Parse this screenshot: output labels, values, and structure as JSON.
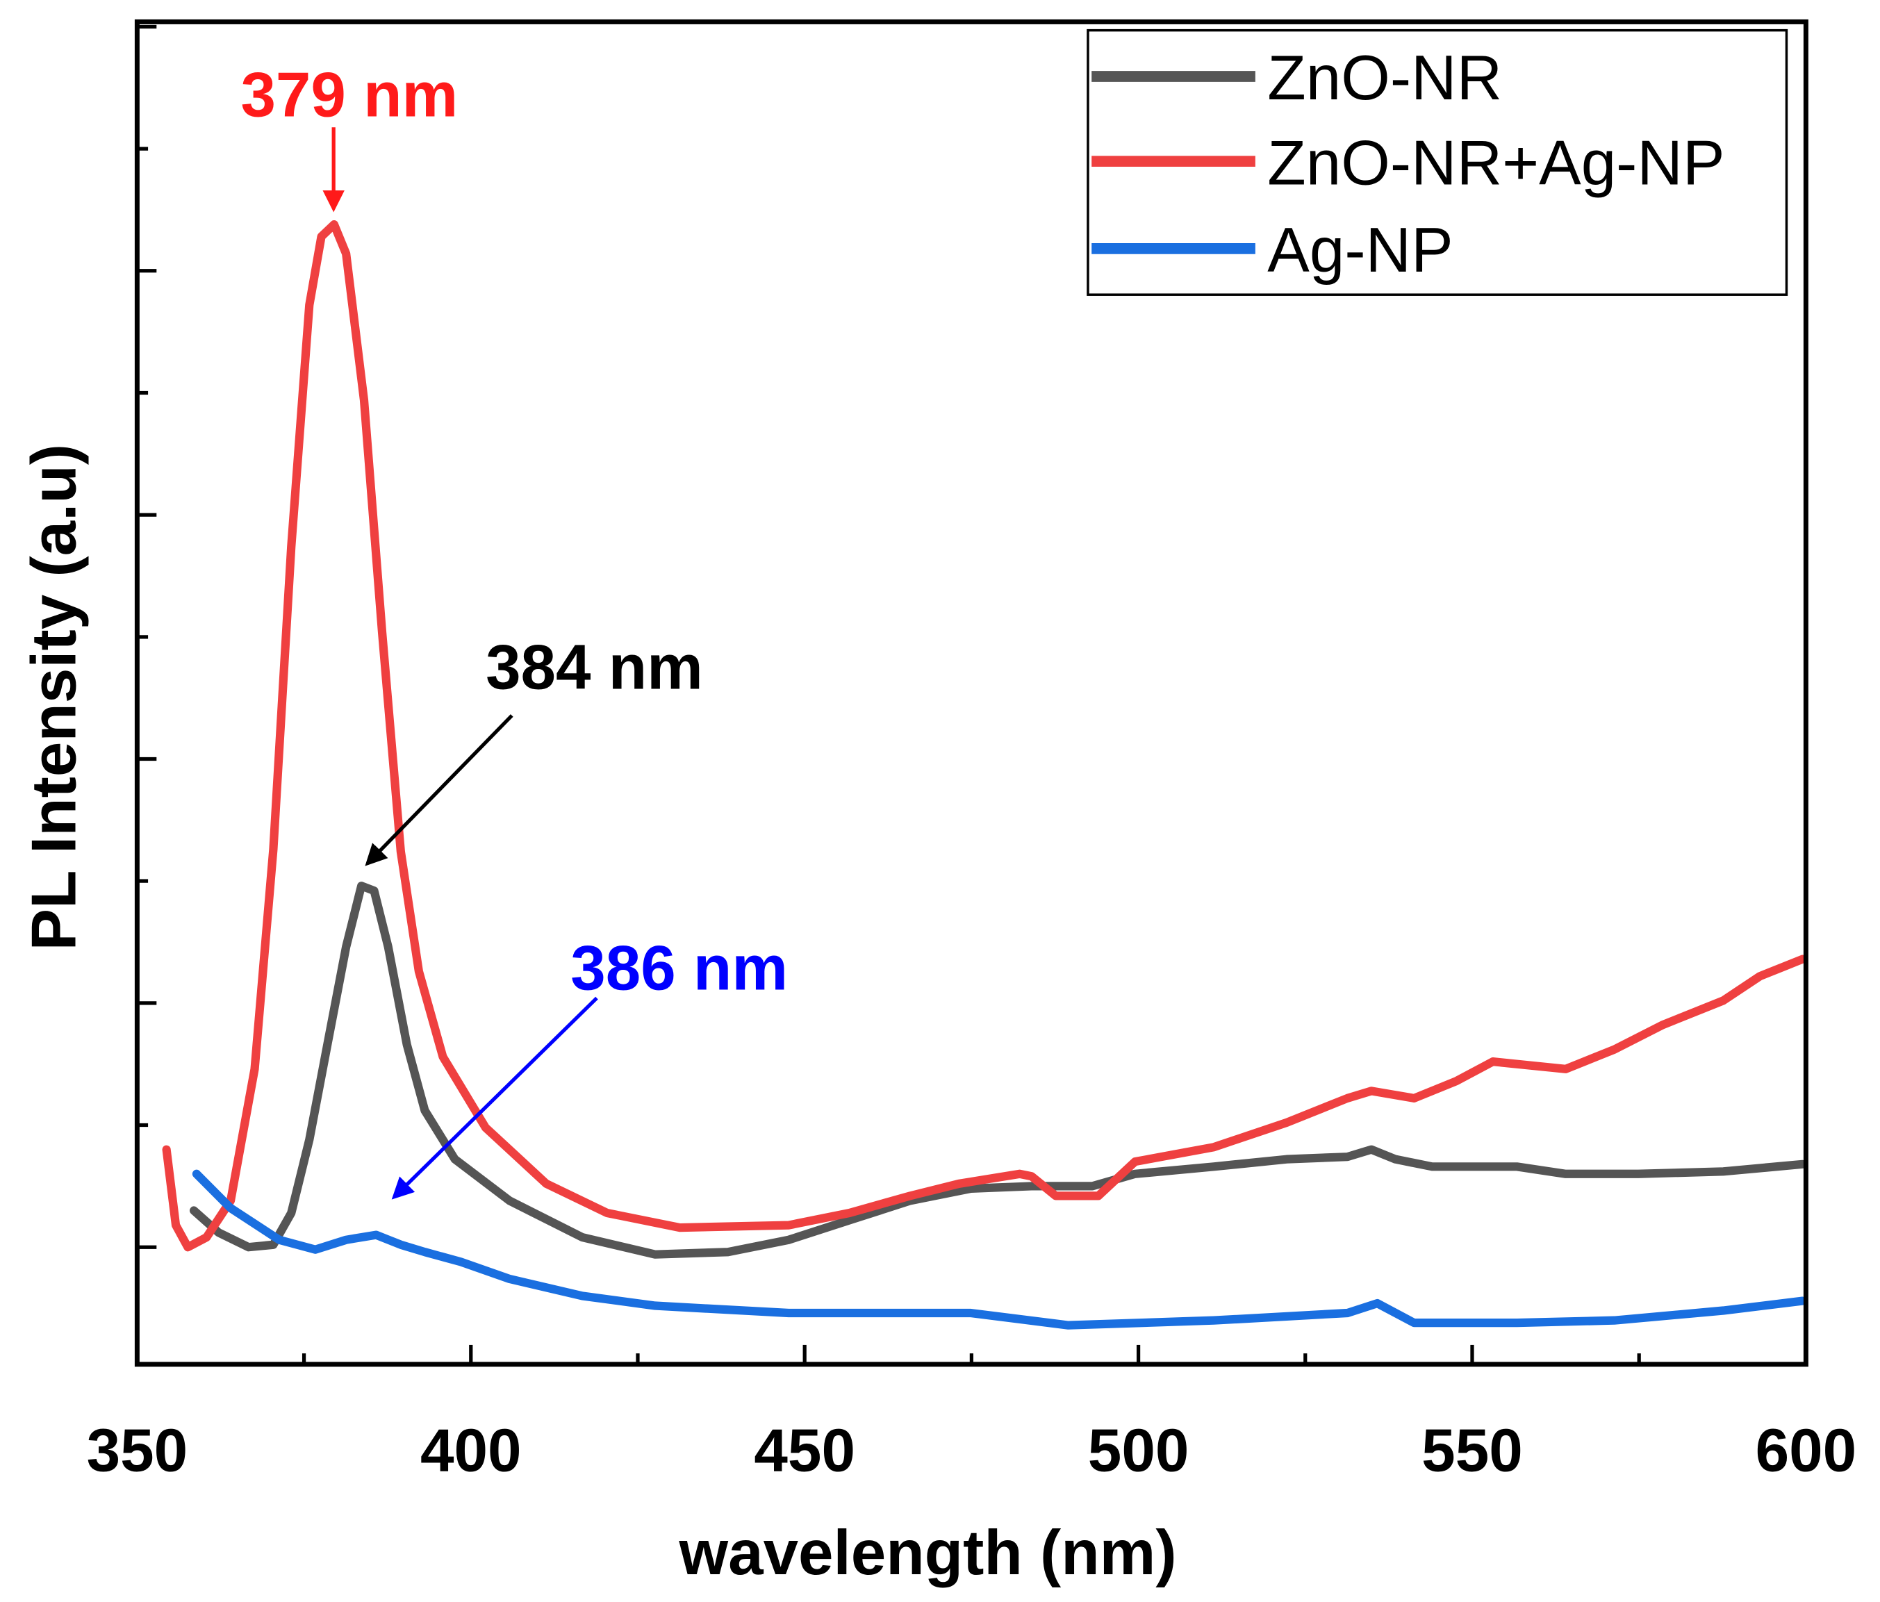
{
  "chart_data": {
    "type": "line",
    "title": "",
    "xlabel": "wavelength (nm)",
    "ylabel": "PL Intensity (a.u)",
    "xlim": [
      350,
      600
    ],
    "ylim": [
      -0.48,
      5.02
    ],
    "x_ticks": [
      350,
      400,
      450,
      500,
      550,
      600
    ],
    "y_tick_labels_shown": false,
    "grid": false,
    "legend_position": "top-right",
    "series": [
      {
        "name": "ZnO-NR",
        "color": "#555555",
        "x": [
          358.5,
          362.2,
          366.7,
          370.4,
          373.1,
          375.8,
          378.5,
          381.3,
          383.6,
          385.5,
          387.6,
          390.4,
          393.1,
          397.6,
          405.8,
          416.7,
          427.6,
          438.5,
          447.6,
          456.7,
          465.8,
          474.9,
          484.0,
          493.1,
          499.5,
          511.3,
          522.2,
          531.3,
          534.9,
          538.5,
          544.0,
          556.7,
          564.0,
          574.9,
          587.6,
          599.5
        ],
        "y": [
          0.15,
          0.06,
          0.0,
          0.01,
          0.14,
          0.44,
          0.83,
          1.23,
          1.48,
          1.46,
          1.23,
          0.83,
          0.56,
          0.36,
          0.19,
          0.04,
          -0.03,
          -0.02,
          0.03,
          0.11,
          0.19,
          0.24,
          0.25,
          0.25,
          0.3,
          0.33,
          0.36,
          0.37,
          0.4,
          0.36,
          0.33,
          0.33,
          0.3,
          0.3,
          0.31,
          0.34
        ]
      },
      {
        "name": "ZnO-NR+Ag-NP",
        "color": "#ef4040",
        "x": [
          354.4,
          355.8,
          357.6,
          360.4,
          364.0,
          367.6,
          370.4,
          373.1,
          375.8,
          377.6,
          379.5,
          381.3,
          384.0,
          386.7,
          389.5,
          392.2,
          395.8,
          402.2,
          411.3,
          420.4,
          431.3,
          447.6,
          456.7,
          465.8,
          473.1,
          482.2,
          484.0,
          487.6,
          494.0,
          499.5,
          511.3,
          522.2,
          531.3,
          534.9,
          541.3,
          547.6,
          553.1,
          564.0,
          571.3,
          578.5,
          587.6,
          593.1,
          599.5
        ],
        "y": [
          0.4,
          0.09,
          0.0,
          0.04,
          0.19,
          0.73,
          1.63,
          2.87,
          3.86,
          4.14,
          4.19,
          4.07,
          3.47,
          2.52,
          1.62,
          1.13,
          0.78,
          0.49,
          0.26,
          0.14,
          0.08,
          0.09,
          0.14,
          0.21,
          0.26,
          0.3,
          0.29,
          0.21,
          0.21,
          0.35,
          0.41,
          0.51,
          0.61,
          0.64,
          0.61,
          0.68,
          0.76,
          0.73,
          0.81,
          0.91,
          1.01,
          1.11,
          1.18
        ]
      },
      {
        "name": "Ag-NP",
        "color": "#1a6fe0",
        "x": [
          358.9,
          364.0,
          371.3,
          376.7,
          381.3,
          385.8,
          389.5,
          393.1,
          398.5,
          405.8,
          416.7,
          427.6,
          447.6,
          474.9,
          489.5,
          511.3,
          531.3,
          535.8,
          541.3,
          556.7,
          571.3,
          587.6,
          599.5
        ],
        "y": [
          0.3,
          0.16,
          0.03,
          -0.01,
          0.03,
          0.05,
          0.01,
          -0.02,
          -0.06,
          -0.13,
          -0.2,
          -0.24,
          -0.27,
          -0.27,
          -0.32,
          -0.3,
          -0.27,
          -0.23,
          -0.31,
          -0.31,
          -0.3,
          -0.26,
          -0.22
        ]
      }
    ],
    "annotations": [
      {
        "text": "379 nm",
        "color": "#ff1a1a"
      },
      {
        "text": "384 nm",
        "color": "#000000"
      },
      {
        "text": "386 nm",
        "color": "#0000ff"
      }
    ]
  }
}
